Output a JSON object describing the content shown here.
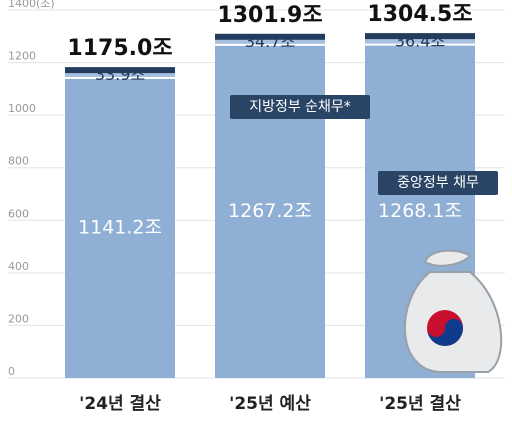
{
  "chart_data": {
    "type": "stacked-bar",
    "categories": [
      "'24년 결산",
      "'25년 예산",
      "'25년 결산"
    ],
    "series": [
      {
        "name": "중앙정부 채무",
        "color": "#8fafd4",
        "values": [
          1141.2,
          1267.2,
          1268.1
        ],
        "value_labels": [
          "1141.2조",
          "1267.2조",
          "1268.1조"
        ]
      },
      {
        "name": "지방정부 순채무*",
        "color": "#a6c0e0",
        "values": [
          33.9,
          34.7,
          36.4
        ],
        "value_labels": [
          "33.9조",
          "34.7조",
          "36.4조"
        ]
      }
    ],
    "totals": {
      "values": [
        1175.0,
        1301.9,
        1304.5
      ],
      "value_labels": [
        "1175.0조",
        "1301.9조",
        "1304.5조"
      ]
    },
    "ylim": [
      0,
      1400
    ],
    "yticks": [
      0,
      200,
      400,
      600,
      800,
      1000,
      1200,
      {
        "value": 1400,
        "label": "1400(조)"
      }
    ],
    "grid": true
  }
}
